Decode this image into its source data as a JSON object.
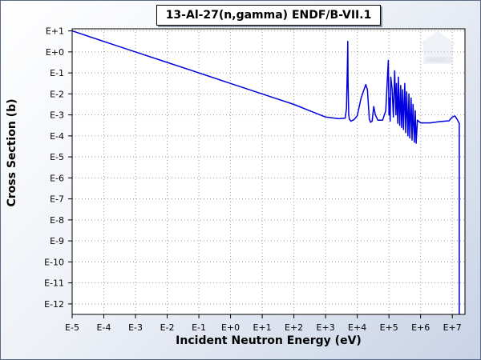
{
  "chart_data": {
    "type": "line",
    "title": "13-Al-27(n,gamma) ENDF/B-VII.1",
    "xlabel": "Incident Neutron Energy (eV)",
    "ylabel": "Cross Section (b)",
    "x_scale": "log",
    "y_scale": "log",
    "xlim_exp": [
      -5,
      7.4
    ],
    "ylim_exp": [
      -12.5,
      1.1
    ],
    "x_ticks": [
      "E-5",
      "E-4",
      "E-3",
      "E-2",
      "E-1",
      "E+0",
      "E+1",
      "E+2",
      "E+3",
      "E+4",
      "E+5",
      "E+6",
      "E+7"
    ],
    "y_ticks": [
      "E+1",
      "E+0",
      "E-1",
      "E-2",
      "E-3",
      "E-4",
      "E-5",
      "E-6",
      "E-7",
      "E-8",
      "E-9",
      "E-10",
      "E-11",
      "E-12"
    ],
    "grid": true,
    "line_color": "#0000e0",
    "series": [
      {
        "x_log10": [
          -5,
          -4,
          -3,
          -2,
          -1,
          0,
          1,
          2,
          3,
          3.42,
          3.62,
          3.66,
          3.69,
          3.7,
          3.71,
          3.73,
          3.75,
          3.8,
          3.9,
          4.0,
          4.12,
          4.27,
          4.32,
          4.38,
          4.42,
          4.47,
          4.52,
          4.57,
          4.65,
          4.8,
          4.9,
          4.96,
          4.98,
          5.0,
          5.02,
          5.04,
          5.06,
          5.1,
          5.14,
          5.18,
          5.22,
          5.24,
          5.28,
          5.3,
          5.34,
          5.37,
          5.4,
          5.43,
          5.46,
          5.5,
          5.53,
          5.56,
          5.6,
          5.63,
          5.66,
          5.7,
          5.73,
          5.76,
          5.8,
          5.83,
          5.86,
          5.9,
          6.0,
          6.3,
          6.6,
          6.9,
          7.0,
          7.08,
          7.15,
          7.2,
          7.22,
          7.22
        ],
        "y_log10": [
          1.0,
          0.5,
          0.0,
          -0.5,
          -1.0,
          -1.5,
          -2.0,
          -2.5,
          -3.1,
          -3.18,
          -3.15,
          -2.7,
          -0.5,
          0.5,
          -1.5,
          -3.0,
          -3.2,
          -3.3,
          -3.22,
          -3.05,
          -2.2,
          -1.55,
          -1.8,
          -3.2,
          -3.35,
          -3.3,
          -2.6,
          -3.0,
          -3.25,
          -3.25,
          -2.8,
          -1.0,
          -0.4,
          -3.0,
          -2.2,
          -3.3,
          -1.2,
          -1.75,
          -3.1,
          -0.9,
          -3.0,
          -1.5,
          -3.4,
          -1.2,
          -3.5,
          -1.6,
          -3.6,
          -1.8,
          -3.7,
          -1.5,
          -3.85,
          -1.9,
          -4.0,
          -2.0,
          -4.1,
          -2.2,
          -4.2,
          -2.5,
          -4.3,
          -2.8,
          -4.35,
          -3.25,
          -3.38,
          -3.38,
          -3.32,
          -3.28,
          -3.1,
          -3.05,
          -3.2,
          -3.35,
          -3.4,
          -12.5
        ]
      }
    ]
  },
  "watermark": {
    "name": "nndc-logo",
    "text": "NNDC"
  }
}
